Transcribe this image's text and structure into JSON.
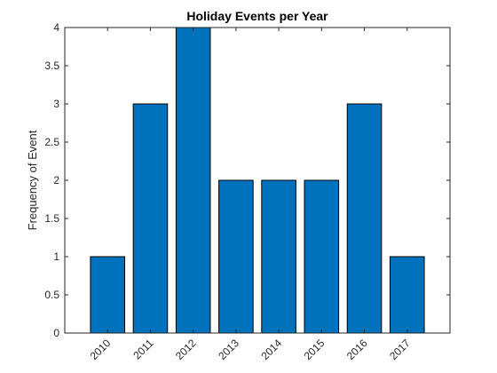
{
  "chart_data": {
    "type": "bar",
    "title": "Holiday Events per Year",
    "xlabel": "",
    "ylabel": "Frequency of Event",
    "categories": [
      "2010",
      "2011",
      "2012",
      "2013",
      "2014",
      "2015",
      "2016",
      "2017"
    ],
    "values": [
      1,
      3,
      4,
      2,
      2,
      2,
      3,
      1
    ],
    "ylim": [
      0,
      4
    ],
    "yticks": [
      "0",
      "0.5",
      "1",
      "1.5",
      "2",
      "2.5",
      "3",
      "3.5",
      "4"
    ],
    "grid": false,
    "legend": "none",
    "bar_color": "#0072BD",
    "edge_color": "#000000"
  }
}
